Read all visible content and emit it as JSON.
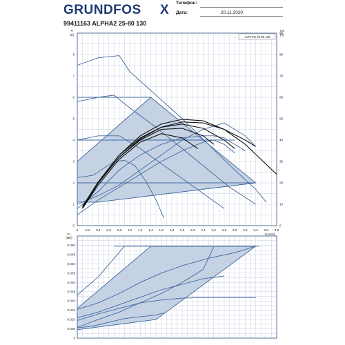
{
  "header": {
    "brand": "GRUNDFOS",
    "brand_mark": "X",
    "phone_label": "Телефон:",
    "phone_value": "",
    "date_label": "Дата:",
    "date_value": "20.11.2020",
    "title": "99411163 ALPHA2 25-80 130"
  },
  "colors": {
    "brand": "#1c3a73",
    "frame": "#2a4b85",
    "grid": "#8f9fc4",
    "curve": "#3e679f",
    "area_fill": "#c5d2e4",
    "system_curve": "#111111"
  },
  "chart_data": [
    {
      "type": "line",
      "legend": "ALPHA2 25-80 130",
      "xlabel": "Q [м³/ч]",
      "ylabel": "H [м]",
      "y2label": "eta [%]",
      "xlim": [
        0,
        3.8
      ],
      "ylim": [
        0,
        9
      ],
      "y2lim": [
        0,
        90
      ],
      "xticks": [
        "0",
        "0,2",
        "0,4",
        "0,6",
        "0,8",
        "1,0",
        "1,2",
        "1,4",
        "1,6",
        "1,8",
        "2,0",
        "2,2",
        "2,4",
        "2,6",
        "2,8",
        "3,0",
        "3,2",
        "3,4",
        "3,6",
        "3,8"
      ],
      "yticks": [
        "0",
        "1",
        "2",
        "3",
        "4",
        "5",
        "6",
        "7",
        "8"
      ],
      "y2ticks": [
        "0",
        "10",
        "20",
        "30",
        "40",
        "50",
        "60",
        "70",
        "80",
        "90"
      ],
      "grid": true,
      "operating_area": [
        [
          0,
          1.1
        ],
        [
          0,
          3.0
        ],
        [
          1.4,
          6.0
        ],
        [
          3.4,
          2.0
        ],
        [
          0.4,
          1.1
        ]
      ],
      "series": [
        {
          "x": [
            0,
            0.4,
            0.8,
            1.0,
            1.5,
            2.0,
            2.5,
            3.0,
            3.4,
            3.6
          ],
          "y": [
            7.5,
            7.85,
            7.95,
            7.2,
            6.1,
            5.0,
            3.8,
            2.6,
            1.7,
            1.1
          ]
        },
        {
          "x": [
            0,
            0.4,
            0.7,
            1.0,
            1.5,
            2.0,
            2.5,
            2.9,
            3.4
          ],
          "y": [
            5.8,
            6.0,
            6.1,
            5.5,
            4.6,
            3.6,
            2.6,
            1.8,
            1.0
          ]
        },
        {
          "x": [
            0,
            0.4,
            0.8,
            1.2,
            1.6,
            2.0,
            2.4,
            2.8
          ],
          "y": [
            4.0,
            4.2,
            4.2,
            3.6,
            2.9,
            2.2,
            1.5,
            0.8
          ]
        },
        {
          "x": [
            0,
            0.3,
            0.7,
            0.9,
            1.1,
            1.3,
            1.5,
            1.65
          ],
          "y": [
            2.25,
            2.35,
            3.0,
            3.05,
            2.8,
            2.1,
            1.2,
            0.35
          ]
        },
        {
          "x": [
            0,
            0.4,
            0.8,
            1.2,
            1.6,
            2.0,
            2.4,
            2.8,
            3.2,
            3.4
          ],
          "y": [
            1.0,
            1.4,
            1.9,
            2.6,
            3.3,
            4.0,
            4.5,
            4.8,
            4.2,
            3.7
          ]
        },
        {
          "x": [
            0,
            0.4,
            0.8,
            1.2,
            1.6,
            2.0,
            2.4,
            2.6,
            2.8,
            3.0
          ],
          "y": [
            0.5,
            1.2,
            1.8,
            2.4,
            3.0,
            3.5,
            3.9,
            4.0,
            3.8,
            3.4
          ]
        },
        {
          "x": [
            0,
            0.4,
            0.8,
            1.2,
            1.6,
            2.0,
            2.4,
            2.6,
            2.8,
            3.0,
            3.2
          ],
          "y": [
            0.8,
            1.6,
            2.6,
            3.3,
            3.8,
            4.1,
            4.2,
            4.2,
            4.1,
            3.8,
            3.5
          ]
        }
      ],
      "system_curves": [
        {
          "x": [
            0.1,
            0.4,
            0.8,
            1.2,
            1.6,
            2.0,
            2.4,
            2.8,
            3.2,
            3.5,
            3.8
          ],
          "y": [
            0.9,
            2.0,
            3.3,
            4.2,
            4.75,
            4.97,
            4.9,
            4.5,
            3.8,
            3.1,
            2.4
          ]
        },
        {
          "x": [
            0.1,
            0.4,
            0.8,
            1.2,
            1.6,
            2.0,
            2.4,
            2.8,
            3.2,
            3.4
          ],
          "y": [
            0.85,
            2.0,
            3.2,
            4.05,
            4.6,
            4.85,
            4.8,
            4.5,
            4.0,
            3.7
          ]
        },
        {
          "x": [
            0.1,
            0.4,
            0.8,
            1.2,
            1.6,
            2.0,
            2.4,
            2.8,
            3.0
          ],
          "y": [
            0.9,
            2.05,
            3.3,
            4.1,
            4.6,
            4.75,
            4.55,
            4.0,
            3.6
          ]
        },
        {
          "x": [
            0.1,
            0.4,
            0.8,
            1.2,
            1.6,
            2.0,
            2.4,
            2.6
          ],
          "y": [
            0.8,
            2.0,
            3.2,
            4.0,
            4.5,
            4.55,
            4.2,
            3.8
          ]
        },
        {
          "x": [
            0.1,
            0.4,
            0.8,
            1.2,
            1.6,
            2.0,
            2.3
          ],
          "y": [
            0.8,
            1.9,
            3.1,
            3.9,
            4.3,
            4.1,
            3.6
          ]
        }
      ]
    },
    {
      "type": "line",
      "xlabel": "Q [м³/ч]",
      "ylabel": "P1 [кВт]",
      "xlim": [
        0,
        3.8
      ],
      "ylim": [
        0,
        0.055
      ],
      "yticks": [
        "0",
        "0.005",
        "0.010",
        "0.015",
        "0.020",
        "0.025",
        "0.030",
        "0.035",
        "0.040",
        "0.045",
        "0.050"
      ],
      "grid": true,
      "operating_area": [
        [
          0,
          0.0045
        ],
        [
          0,
          0.016
        ],
        [
          1.4,
          0.0495
        ],
        [
          3.4,
          0.0495
        ],
        [
          1.5,
          0.01
        ],
        [
          0,
          0.0045
        ]
      ],
      "max_power_line": {
        "x": [
          0.7,
          4.1
        ],
        "y": [
          0.0495,
          0.0495
        ]
      },
      "series": [
        {
          "x": [
            0,
            0.4,
            0.9,
            1.4,
            2.0,
            2.5,
            3.0,
            3.4
          ],
          "y": [
            0.0232,
            0.033,
            0.0495,
            0.0495,
            0.0495,
            0.0495,
            0.0495,
            0.0495
          ]
        },
        {
          "x": [
            0,
            0.4,
            0.8,
            1.2,
            1.6,
            2.0,
            2.5,
            3.0,
            3.4
          ],
          "y": [
            0.0155,
            0.019,
            0.024,
            0.03,
            0.035,
            0.039,
            0.043,
            0.046,
            0.0495
          ]
        },
        {
          "x": [
            0,
            0.4,
            0.8,
            1.2,
            1.6,
            2.0,
            2.4,
            2.8
          ],
          "y": [
            0.011,
            0.014,
            0.018,
            0.022,
            0.026,
            0.029,
            0.032,
            0.0335
          ]
        },
        {
          "x": [
            0,
            0.3,
            0.6,
            0.9,
            1.2,
            1.5,
            1.65
          ],
          "y": [
            0.0055,
            0.0065,
            0.0085,
            0.0105,
            0.0115,
            0.0125,
            0.0135
          ]
        },
        {
          "x": [
            0,
            0.4,
            0.8,
            1.2,
            1.6,
            2.0,
            2.4,
            2.6
          ],
          "y": [
            0.0058,
            0.01,
            0.014,
            0.019,
            0.024,
            0.03,
            0.037,
            0.049
          ]
        },
        {
          "x": [
            0,
            0.4,
            0.8,
            1.2,
            1.6,
            2.0,
            2.4,
            3.0,
            3.4
          ],
          "y": [
            0.0095,
            0.013,
            0.016,
            0.019,
            0.0205,
            0.0215,
            0.0218,
            0.0218,
            0.0218
          ]
        }
      ]
    }
  ]
}
